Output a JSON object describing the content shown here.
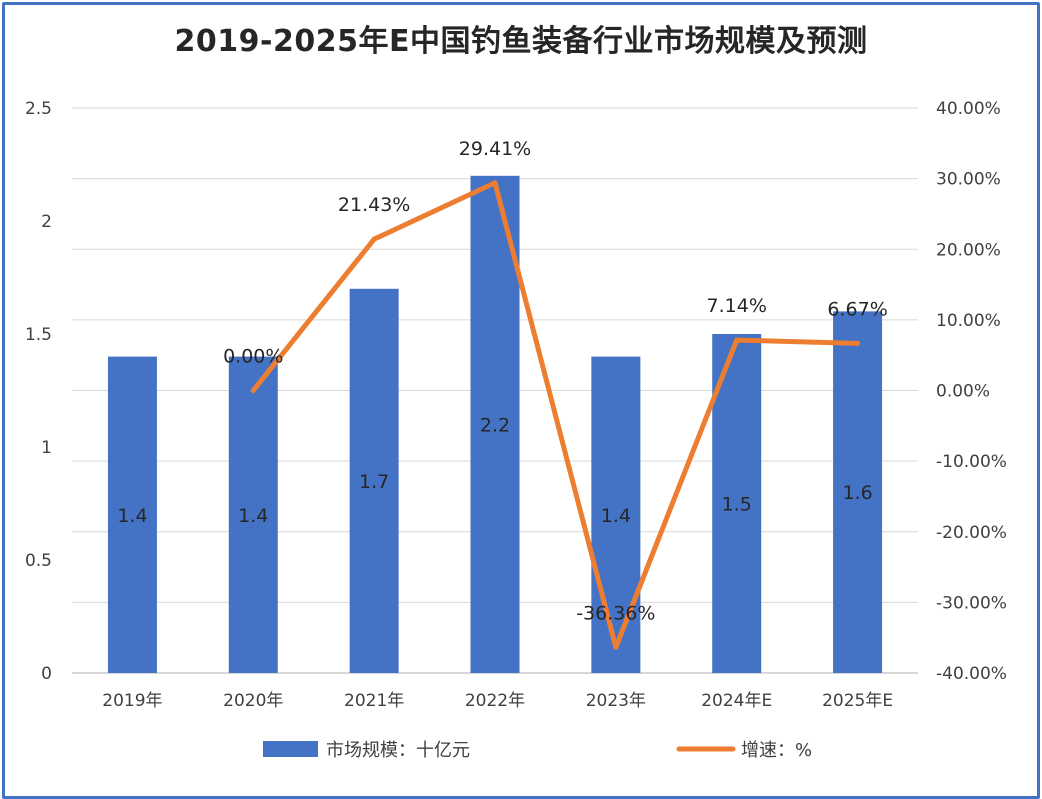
{
  "chart_data": {
    "type": "bar",
    "title": "2019-2025年E中国钓鱼装备行业市场规模及预测",
    "categories": [
      "2019年",
      "2020年",
      "2021年",
      "2022年",
      "2023年",
      "2024年E",
      "2025年E"
    ],
    "series": [
      {
        "name": "市场规模：十亿元",
        "type": "bar",
        "axis": "left",
        "color": "#4472C4",
        "values": [
          1.4,
          1.4,
          1.7,
          2.2,
          1.4,
          1.5,
          1.6
        ],
        "labels": [
          "1.4",
          "1.4",
          "1.7",
          "2.2",
          "1.4",
          "1.5",
          "1.6"
        ]
      },
      {
        "name": "增速：%",
        "type": "line",
        "axis": "right",
        "color": "#ED7D31",
        "values": [
          null,
          0.0,
          21.43,
          29.41,
          -36.36,
          7.14,
          6.67
        ],
        "labels": [
          "",
          "0.00%",
          "21.43%",
          "29.41%",
          "-36.36%",
          "7.14%",
          "6.67%"
        ]
      }
    ],
    "y_left": {
      "min": 0,
      "max": 2.5,
      "ticks": [
        "0",
        "0.5",
        "1",
        "1.5",
        "2",
        "2.5"
      ]
    },
    "y_right": {
      "min": -40,
      "max": 40,
      "ticks": [
        "-40.00%",
        "-30.00%",
        "-20.00%",
        "-10.00%",
        "0.00%",
        "10.00%",
        "20.00%",
        "30.00%",
        "40.00%"
      ]
    },
    "grid": true,
    "legend_position": "bottom"
  }
}
